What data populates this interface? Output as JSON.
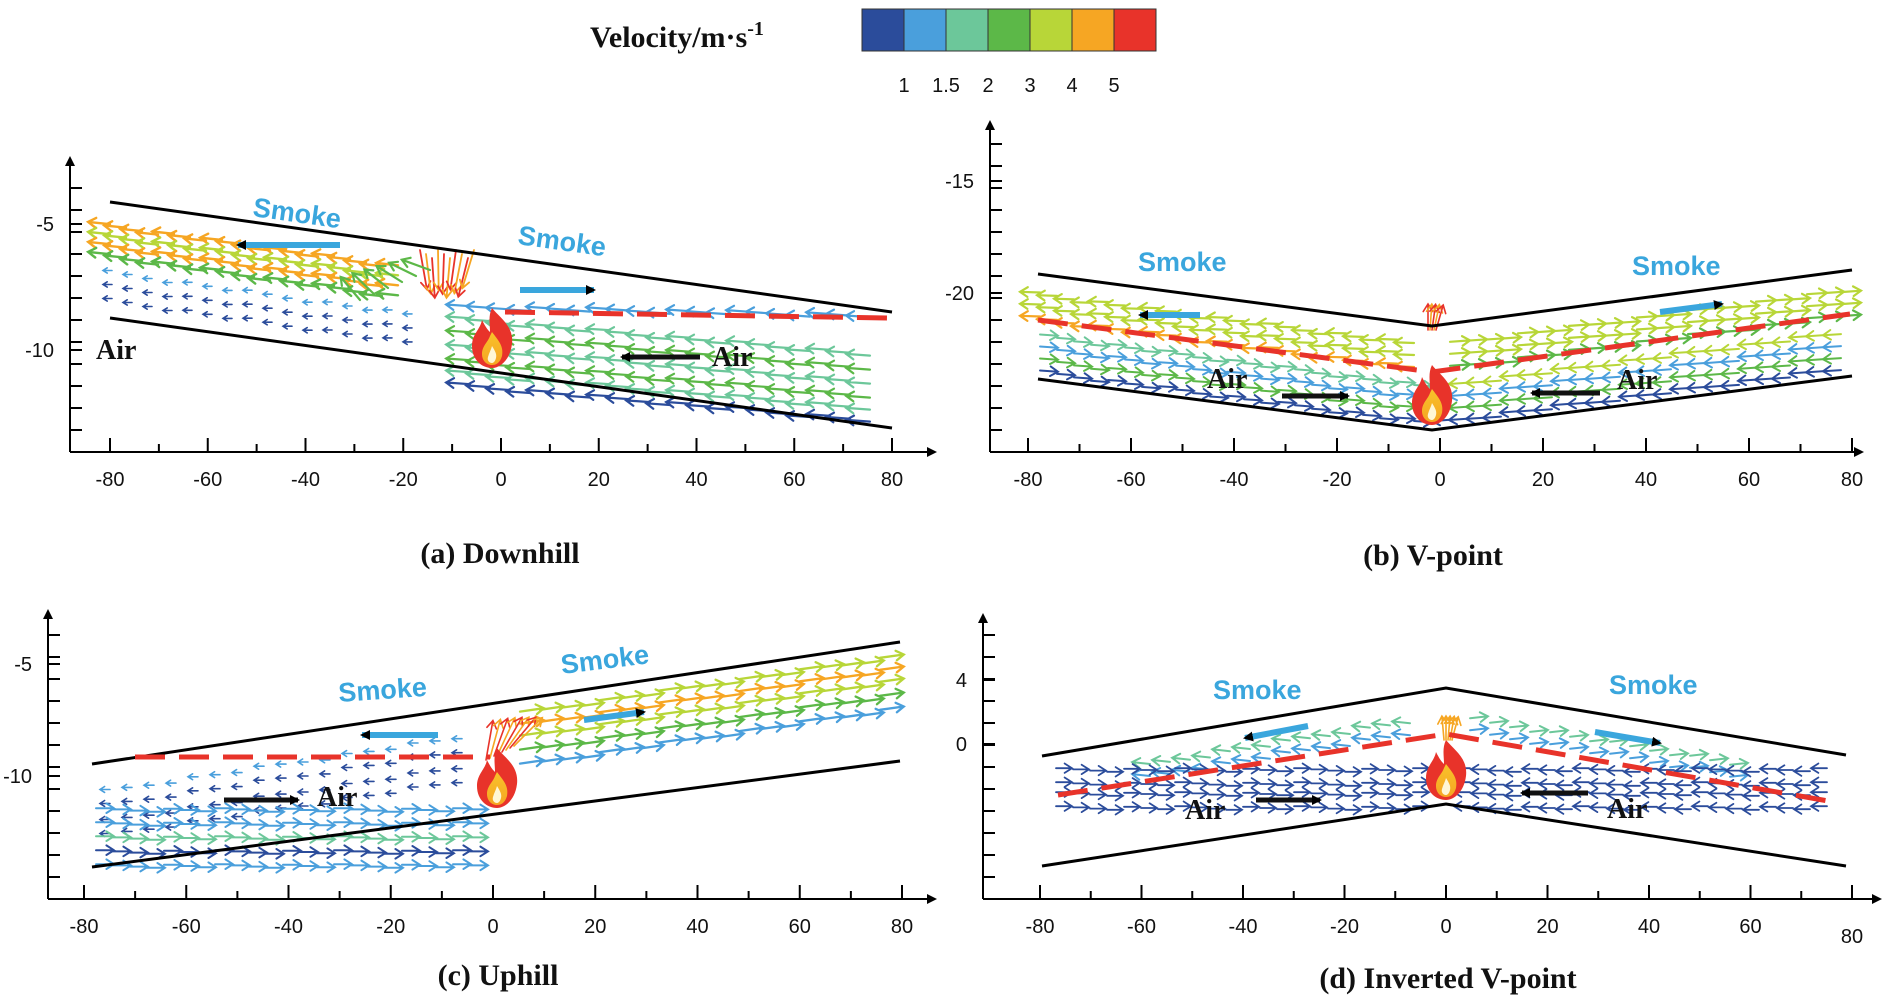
{
  "legend": {
    "title": "Velocity/m·s",
    "title_sup": "-1",
    "colors": [
      "#2b4c9b",
      "#4a9fdc",
      "#6cc79a",
      "#5cb848",
      "#b8d638",
      "#f6a623",
      "#e8332a"
    ],
    "tick_labels": [
      "1",
      "1.5",
      "2",
      "3",
      "4",
      "5"
    ]
  },
  "panels": [
    {
      "id": "a",
      "caption": "(a) Downhill",
      "x_ticks": [
        "-80",
        "-60",
        "-40",
        "-20",
        "0",
        "20",
        "40",
        "60",
        "80"
      ],
      "y_ticks": [
        "-5",
        "-10"
      ],
      "smoke_labels": [
        "Smoke",
        "Smoke"
      ],
      "air_labels": [
        "Air",
        "Air"
      ]
    },
    {
      "id": "b",
      "caption": "(b) V-point",
      "x_ticks": [
        "-80",
        "-60",
        "-40",
        "-20",
        "0",
        "20",
        "40",
        "60",
        "80"
      ],
      "y_ticks": [
        "-15",
        "-20"
      ],
      "smoke_labels": [
        "Smoke",
        "Smoke"
      ],
      "air_labels": [
        "Air",
        "Air"
      ]
    },
    {
      "id": "c",
      "caption": "(c) Uphill",
      "x_ticks": [
        "-80",
        "-60",
        "-40",
        "-20",
        "0",
        "20",
        "40",
        "60",
        "80"
      ],
      "y_ticks": [
        "-5",
        "-10"
      ],
      "smoke_labels": [
        "Smoke",
        "Smoke"
      ],
      "air_labels": [
        "Air"
      ]
    },
    {
      "id": "d",
      "caption": "(d) Inverted  V-point",
      "x_ticks": [
        "-80",
        "-60",
        "-40",
        "-20",
        "0",
        "20",
        "40",
        "60",
        "80"
      ],
      "y_ticks": [
        "4",
        "0"
      ],
      "smoke_labels": [
        "Smoke",
        "Smoke"
      ],
      "air_labels": [
        "Air",
        "Air"
      ]
    }
  ]
}
